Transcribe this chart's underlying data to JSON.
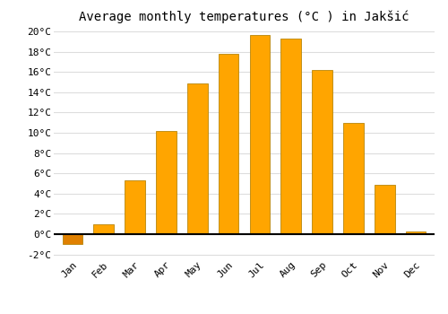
{
  "title": "Average monthly temperatures (°C ) in Jakšić",
  "months": [
    "Jan",
    "Feb",
    "Mar",
    "Apr",
    "May",
    "Jun",
    "Jul",
    "Aug",
    "Sep",
    "Oct",
    "Nov",
    "Dec"
  ],
  "values": [
    -1.0,
    1.0,
    5.3,
    10.2,
    14.9,
    17.8,
    19.6,
    19.3,
    16.2,
    11.0,
    4.9,
    0.3
  ],
  "bar_color_pos": "#FFA500",
  "bar_color_neg": "#E08000",
  "ylim": [
    -2,
    20
  ],
  "yticks": [
    -2,
    0,
    2,
    4,
    6,
    8,
    10,
    12,
    14,
    16,
    18,
    20
  ],
  "background_color": "#ffffff",
  "grid_color": "#dddddd",
  "title_fontsize": 10,
  "tick_fontsize": 8,
  "font_family": "monospace"
}
